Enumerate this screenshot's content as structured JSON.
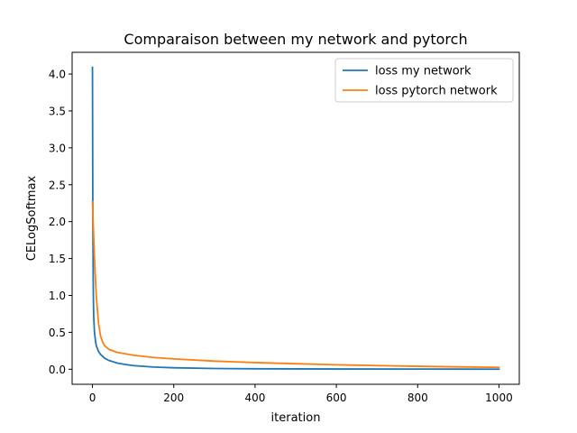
{
  "chart_data": {
    "type": "line",
    "title": "Comparaison between my network and pytorch",
    "xlabel": "iteration",
    "ylabel": "CELogSoftmax",
    "xlim": [
      -50,
      1050
    ],
    "ylim": [
      -0.204,
      4.294
    ],
    "xticks": [
      0,
      200,
      400,
      600,
      800,
      1000
    ],
    "xtick_labels": [
      "0",
      "200",
      "400",
      "600",
      "800",
      "1000"
    ],
    "yticks": [
      0,
      0.5,
      1,
      1.5,
      2,
      2.5,
      3,
      3.5,
      4
    ],
    "ytick_labels": [
      "0.0",
      "0.5",
      "1.0",
      "1.5",
      "2.0",
      "2.5",
      "3.0",
      "3.5",
      "4.0"
    ],
    "grid": false,
    "legend": {
      "position": "top-right"
    },
    "series": [
      {
        "name": "loss my network",
        "color": "#1f77b4",
        "x": [
          0,
          1,
          2,
          3,
          5,
          8,
          10,
          15,
          20,
          30,
          40,
          60,
          80,
          100,
          150,
          200,
          300,
          400,
          600,
          800,
          1000
        ],
        "y": [
          4.09,
          2.0,
          1.1,
          0.72,
          0.5,
          0.36,
          0.31,
          0.24,
          0.2,
          0.15,
          0.12,
          0.085,
          0.065,
          0.05,
          0.03,
          0.02,
          0.01,
          0.006,
          0.003,
          0.002,
          0.001
        ]
      },
      {
        "name": "loss pytorch network",
        "color": "#ff7f0e",
        "x": [
          0,
          2,
          5,
          8,
          10,
          15,
          20,
          25,
          30,
          40,
          50,
          60,
          80,
          100,
          150,
          200,
          300,
          400,
          500,
          600,
          700,
          800,
          900,
          1000
        ],
        "y": [
          2.27,
          1.95,
          1.5,
          1.15,
          0.95,
          0.62,
          0.45,
          0.37,
          0.32,
          0.27,
          0.25,
          0.23,
          0.21,
          0.19,
          0.16,
          0.14,
          0.11,
          0.09,
          0.075,
          0.06,
          0.05,
          0.04,
          0.032,
          0.025
        ]
      }
    ]
  }
}
